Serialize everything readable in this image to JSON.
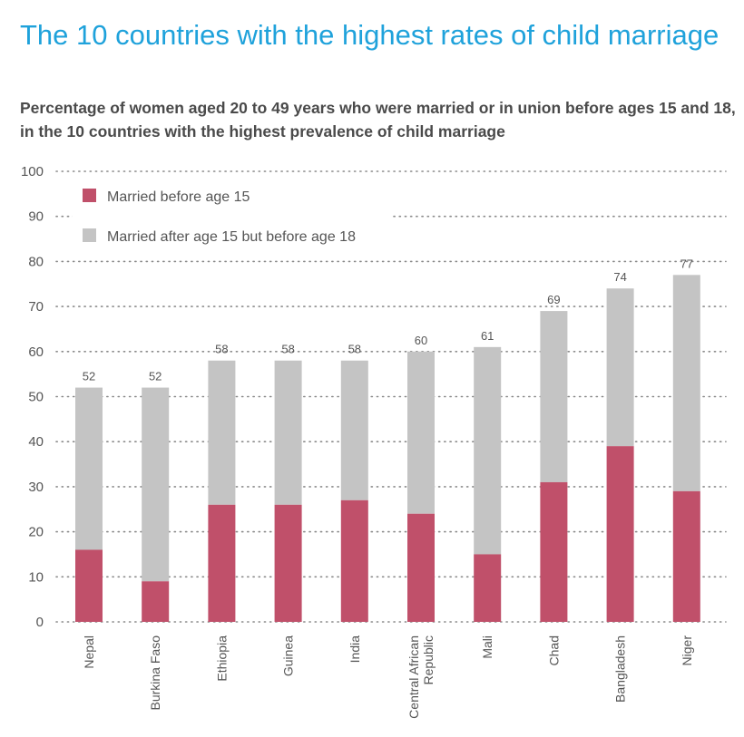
{
  "title": "The 10 countries with the highest rates of child marriage",
  "subtitle": "Percentage of women aged 20 to 49 years who were married or in union before ages 15 and 18, in the 10 countries with the highest prevalence of child marriage",
  "colors": {
    "title": "#1fa2db",
    "before15": "#c0506a",
    "before18": "#c4c4c4",
    "grid": "#8a8a8a"
  },
  "chart_data": {
    "type": "bar",
    "stacked": true,
    "categories": [
      [
        "Nepal"
      ],
      [
        "Burkina Faso"
      ],
      [
        "Ethiopia"
      ],
      [
        "Guinea"
      ],
      [
        "India"
      ],
      [
        "Central African",
        "Republic"
      ],
      [
        "Mali"
      ],
      [
        "Chad"
      ],
      [
        "Bangladesh"
      ],
      [
        "Niger"
      ]
    ],
    "series": [
      {
        "name": "Married before age 15",
        "values": [
          16,
          9,
          26,
          26,
          27,
          24,
          15,
          31,
          39,
          29
        ]
      },
      {
        "name": "Married after age 15 but before age 18",
        "values": [
          36,
          43,
          32,
          32,
          31,
          36,
          46,
          38,
          35,
          48
        ]
      }
    ],
    "totals": [
      52,
      52,
      58,
      58,
      58,
      60,
      61,
      69,
      74,
      77
    ],
    "ylim": [
      0,
      100
    ],
    "yticks": [
      0,
      10,
      20,
      30,
      40,
      50,
      60,
      70,
      80,
      90,
      100
    ],
    "grid": true,
    "grid_style": "dotted",
    "legend_position": "top-left"
  }
}
